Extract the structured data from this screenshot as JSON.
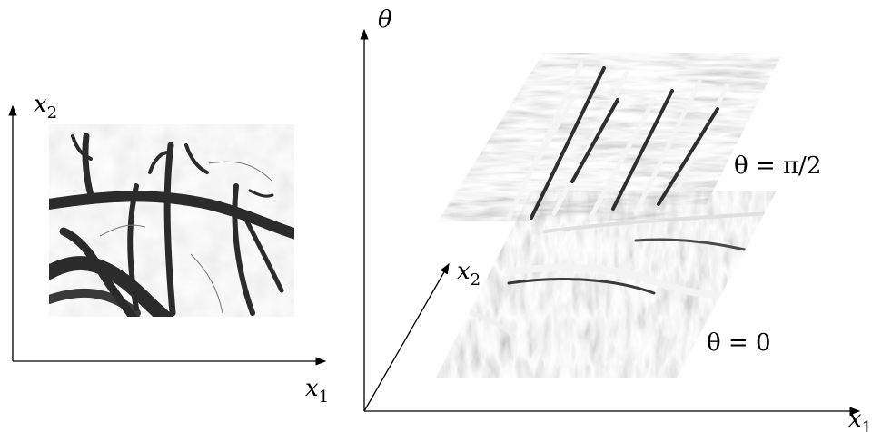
{
  "left_panel": {
    "x_axis": {
      "symbol": "x",
      "subscript": "1"
    },
    "y_axis": {
      "symbol": "x",
      "subscript": "2"
    }
  },
  "right_panel": {
    "vertical_axis": {
      "symbol": "θ"
    },
    "depth_axis": {
      "symbol": "x",
      "subscript": "2"
    },
    "horizontal_axis": {
      "symbol": "x",
      "subscript": "1"
    },
    "slices": [
      {
        "label": "θ = π/2"
      },
      {
        "label": "θ = 0"
      }
    ]
  },
  "colors": {
    "axis": "#000000",
    "image_light": "#d9d9d9",
    "image_dark": "#2a2a2a",
    "slice_mid": "#8c8c8c"
  }
}
